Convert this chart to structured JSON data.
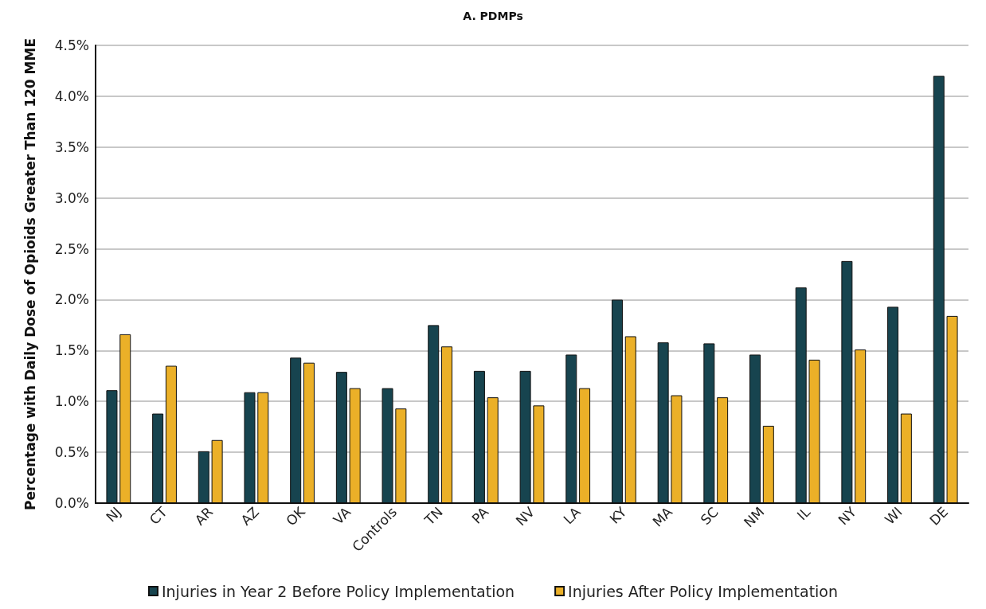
{
  "chart_data": {
    "type": "bar",
    "title": "A. PDMPs",
    "ylabel": "Percentage with Daily Dose of Opioids Greater Than 120 MME",
    "categories": [
      "NJ",
      "CT",
      "AR",
      "AZ",
      "OK",
      "VA",
      "Controls",
      "TN",
      "PA",
      "NV",
      "LA",
      "KY",
      "MA",
      "SC",
      "NM",
      "IL",
      "NY",
      "WI",
      "DE"
    ],
    "series": [
      {
        "name": "Injuries in Year 2 Before Policy Implementation",
        "color": "#17444f",
        "values": [
          1.11,
          0.88,
          0.51,
          1.09,
          1.43,
          1.29,
          1.13,
          1.75,
          1.3,
          1.3,
          1.46,
          2.0,
          1.58,
          1.57,
          1.46,
          2.12,
          2.38,
          1.93,
          4.2
        ]
      },
      {
        "name": "Injuries After Policy Implementation",
        "color": "#ebb028",
        "values": [
          1.66,
          1.35,
          0.62,
          1.09,
          1.38,
          1.13,
          0.93,
          1.54,
          1.04,
          0.96,
          1.13,
          1.64,
          1.06,
          1.04,
          0.76,
          1.41,
          1.51,
          0.88,
          1.84
        ]
      }
    ],
    "ylim": [
      0,
      4.5
    ],
    "yticks": [
      {
        "value": 0,
        "label": "0.0%"
      },
      {
        "value": 0.5,
        "label": "0.5%"
      },
      {
        "value": 1,
        "label": "1.0%"
      },
      {
        "value": 1.5,
        "label": "1.5%"
      },
      {
        "value": 2,
        "label": "2.0%"
      },
      {
        "value": 2.5,
        "label": "2.5%"
      },
      {
        "value": 3,
        "label": "3.0%"
      },
      {
        "value": 3.5,
        "label": "3.5%"
      },
      {
        "value": 4,
        "label": "4.0%"
      },
      {
        "value": 4.5,
        "label": "4.5%"
      }
    ],
    "grid": "y",
    "legend": "bottom"
  }
}
